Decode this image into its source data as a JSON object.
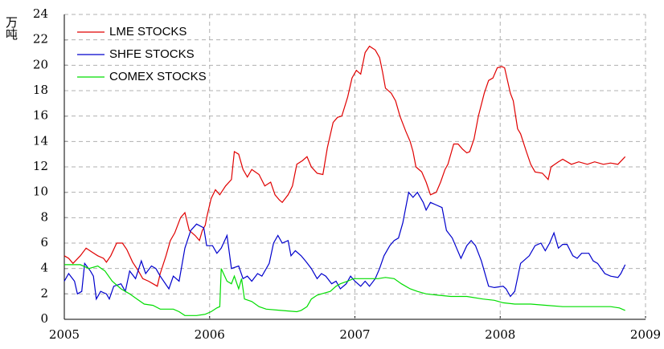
{
  "chart_data": {
    "type": "line",
    "y_label": "万吨",
    "xlim": [
      2005,
      2009
    ],
    "xticks": [
      2005,
      2006,
      2007,
      2008,
      2009
    ],
    "ylim": [
      0,
      24
    ],
    "yticks": [
      0,
      2,
      4,
      6,
      8,
      10,
      12,
      14,
      16,
      18,
      20,
      22,
      24
    ],
    "grid": true,
    "legend": "upper left",
    "series": [
      {
        "name": "LME STOCKS",
        "color": "#e00000",
        "x": [
          2005.0,
          2005.03,
          2005.06,
          2005.11,
          2005.15,
          2005.19,
          2005.23,
          2005.27,
          2005.29,
          2005.32,
          2005.36,
          2005.4,
          2005.43,
          2005.47,
          2005.51,
          2005.54,
          2005.58,
          2005.61,
          2005.64,
          2005.66,
          2005.7,
          2005.73,
          2005.76,
          2005.8,
          2005.83,
          2005.86,
          2005.9,
          2005.93,
          2005.95,
          2005.97,
          2005.98,
          2006.01,
          2006.04,
          2006.07,
          2006.11,
          2006.15,
          2006.17,
          2006.2,
          2006.23,
          2006.26,
          2006.29,
          2006.34,
          2006.38,
          2006.42,
          2006.45,
          2006.48,
          2006.5,
          2006.54,
          2006.57,
          2006.6,
          2006.64,
          2006.67,
          2006.7,
          2006.74,
          2006.78,
          2006.81,
          2006.85,
          2006.88,
          2006.91,
          2006.95,
          2006.98,
          2007.01,
          2007.04,
          2007.07,
          2007.1,
          2007.14,
          2007.17,
          2007.19,
          2007.21,
          2007.25,
          2007.28,
          2007.31,
          2007.35,
          2007.38,
          2007.4,
          2007.42,
          2007.46,
          2007.49,
          2007.52,
          2007.56,
          2007.59,
          2007.62,
          2007.64,
          2007.68,
          2007.71,
          2007.74,
          2007.77,
          2007.79,
          2007.82,
          2007.85,
          2007.89,
          2007.92,
          2007.95,
          2007.98,
          2008.01,
          2008.03,
          2008.07,
          2008.09,
          2008.12,
          2008.14,
          2008.18,
          2008.21,
          2008.24,
          2008.29,
          2008.33,
          2008.35,
          2008.4,
          2008.43,
          2008.49,
          2008.54,
          2008.6,
          2008.65,
          2008.71,
          2008.76,
          2008.81,
          2008.86
        ],
        "values": [
          5.0,
          4.8,
          4.4,
          5.0,
          5.6,
          5.3,
          5.0,
          4.8,
          4.5,
          5.0,
          6.0,
          6.0,
          5.5,
          4.5,
          3.8,
          3.2,
          3.0,
          2.8,
          2.6,
          3.6,
          5.0,
          6.2,
          6.8,
          8.0,
          8.4,
          7.0,
          6.6,
          6.2,
          7.0,
          7.4,
          8.0,
          9.5,
          10.2,
          9.8,
          10.5,
          11.0,
          13.2,
          13.0,
          11.8,
          11.2,
          11.8,
          11.4,
          10.5,
          10.8,
          9.8,
          9.4,
          9.2,
          9.8,
          10.5,
          12.2,
          12.5,
          12.8,
          12.0,
          11.5,
          11.4,
          13.5,
          15.5,
          15.9,
          16.0,
          17.5,
          19.0,
          19.6,
          19.3,
          21.0,
          21.5,
          21.2,
          20.6,
          19.5,
          18.2,
          17.8,
          17.2,
          16.0,
          14.8,
          14.0,
          13.2,
          12.0,
          11.6,
          10.8,
          9.8,
          10.0,
          10.8,
          11.8,
          12.2,
          13.8,
          13.8,
          13.4,
          13.1,
          13.2,
          14.2,
          16.0,
          17.8,
          18.8,
          19.0,
          19.8,
          19.9,
          19.8,
          17.8,
          17.2,
          15.0,
          14.6,
          13.2,
          12.2,
          11.6,
          11.5,
          11.0,
          12.0,
          12.4,
          12.6,
          12.2,
          12.4,
          12.2,
          12.4,
          12.2,
          12.3,
          12.2,
          12.8
        ]
      },
      {
        "name": "SHFE STOCKS",
        "color": "#0000cc",
        "x": [
          2005.0,
          2005.03,
          2005.07,
          2005.09,
          2005.12,
          2005.14,
          2005.18,
          2005.2,
          2005.22,
          2005.25,
          2005.29,
          2005.31,
          2005.34,
          2005.39,
          2005.42,
          2005.45,
          2005.49,
          2005.53,
          2005.56,
          2005.6,
          2005.63,
          2005.66,
          2005.72,
          2005.75,
          2005.79,
          2005.83,
          2005.87,
          2005.91,
          2005.96,
          2005.98,
          2006.02,
          2006.05,
          2006.08,
          2006.12,
          2006.15,
          2006.2,
          2006.23,
          2006.26,
          2006.29,
          2006.33,
          2006.36,
          2006.41,
          2006.44,
          2006.47,
          2006.5,
          2006.54,
          2006.56,
          2006.59,
          2006.63,
          2006.66,
          2006.7,
          2006.74,
          2006.77,
          2006.8,
          2006.84,
          2006.87,
          2006.9,
          2006.94,
          2006.97,
          2007.0,
          2007.04,
          2007.07,
          2007.1,
          2007.14,
          2007.17,
          2007.2,
          2007.24,
          2007.27,
          2007.3,
          2007.33,
          2007.37,
          2007.4,
          2007.43,
          2007.47,
          2007.49,
          2007.52,
          2007.56,
          2007.6,
          2007.63,
          2007.67,
          2007.7,
          2007.73,
          2007.77,
          2007.8,
          2007.83,
          2007.87,
          2007.89,
          2007.92,
          2007.96,
          2008.02,
          2008.04,
          2008.07,
          2008.1,
          2008.14,
          2008.2,
          2008.24,
          2008.28,
          2008.31,
          2008.34,
          2008.37,
          2008.4,
          2008.43,
          2008.46,
          2008.5,
          2008.53,
          2008.56,
          2008.61,
          2008.64,
          2008.67,
          2008.72,
          2008.76,
          2008.81,
          2008.83,
          2008.86
        ],
        "values": [
          3.0,
          3.6,
          3.0,
          2.0,
          2.2,
          4.4,
          3.8,
          3.4,
          1.6,
          2.2,
          2.0,
          1.6,
          2.6,
          2.8,
          2.2,
          3.8,
          3.2,
          4.6,
          3.6,
          4.2,
          4.0,
          3.4,
          2.4,
          3.4,
          3.0,
          5.6,
          7.0,
          7.5,
          7.2,
          5.8,
          5.8,
          5.2,
          5.6,
          6.6,
          4.0,
          4.2,
          3.2,
          3.4,
          3.0,
          3.6,
          3.4,
          4.4,
          6.0,
          6.6,
          6.0,
          6.2,
          5.0,
          5.4,
          5.0,
          4.6,
          4.0,
          3.2,
          3.6,
          3.4,
          2.8,
          3.0,
          2.4,
          2.8,
          3.4,
          3.0,
          2.6,
          3.0,
          2.6,
          3.2,
          4.0,
          5.0,
          5.8,
          6.2,
          6.4,
          7.6,
          10.0,
          9.6,
          10.0,
          9.2,
          8.6,
          9.2,
          9.0,
          8.8,
          7.0,
          6.4,
          5.6,
          4.8,
          5.8,
          6.2,
          5.8,
          4.6,
          3.8,
          2.6,
          2.5,
          2.6,
          2.4,
          1.8,
          2.2,
          4.4,
          5.0,
          5.8,
          6.0,
          5.4,
          6.0,
          6.8,
          5.6,
          5.9,
          5.9,
          5.0,
          4.8,
          5.2,
          5.2,
          4.6,
          4.4,
          3.6,
          3.4,
          3.3,
          3.6,
          4.3
        ]
      },
      {
        "name": "COMEX STOCKS",
        "color": "#00dd00",
        "x": [
          2005.0,
          2005.11,
          2005.17,
          2005.23,
          2005.28,
          2005.33,
          2005.39,
          2005.45,
          2005.5,
          2005.55,
          2005.61,
          2005.66,
          2005.75,
          2005.79,
          2005.83,
          2005.91,
          2005.97,
          2006.01,
          2006.05,
          2006.07,
          2006.08,
          2006.12,
          2006.15,
          2006.17,
          2006.2,
          2006.22,
          2006.24,
          2006.29,
          2006.34,
          2006.39,
          2006.49,
          2006.6,
          2006.63,
          2006.67,
          2006.7,
          2006.74,
          2006.77,
          2006.83,
          2006.87,
          2006.9,
          2006.95,
          2006.99,
          2007.16,
          2007.21,
          2007.27,
          2007.32,
          2007.38,
          2007.43,
          2007.49,
          2007.57,
          2007.66,
          2007.77,
          2007.88,
          2007.96,
          2008.02,
          2008.1,
          2008.21,
          2008.32,
          2008.43,
          2008.54,
          2008.65,
          2008.76,
          2008.82,
          2008.86
        ],
        "values": [
          4.3,
          4.3,
          4.0,
          4.2,
          3.8,
          3.0,
          2.4,
          2.0,
          1.6,
          1.2,
          1.1,
          0.8,
          0.8,
          0.6,
          0.3,
          0.3,
          0.4,
          0.6,
          0.9,
          1.0,
          4.0,
          3.0,
          2.8,
          3.4,
          2.4,
          3.2,
          1.6,
          1.4,
          1.0,
          0.8,
          0.7,
          0.6,
          0.7,
          1.0,
          1.6,
          1.9,
          2.0,
          2.2,
          2.6,
          2.8,
          3.0,
          3.2,
          3.2,
          3.3,
          3.2,
          2.8,
          2.4,
          2.2,
          2.0,
          1.9,
          1.8,
          1.8,
          1.6,
          1.5,
          1.3,
          1.2,
          1.2,
          1.1,
          1.0,
          1.0,
          1.0,
          1.0,
          0.9,
          0.7
        ]
      }
    ]
  }
}
